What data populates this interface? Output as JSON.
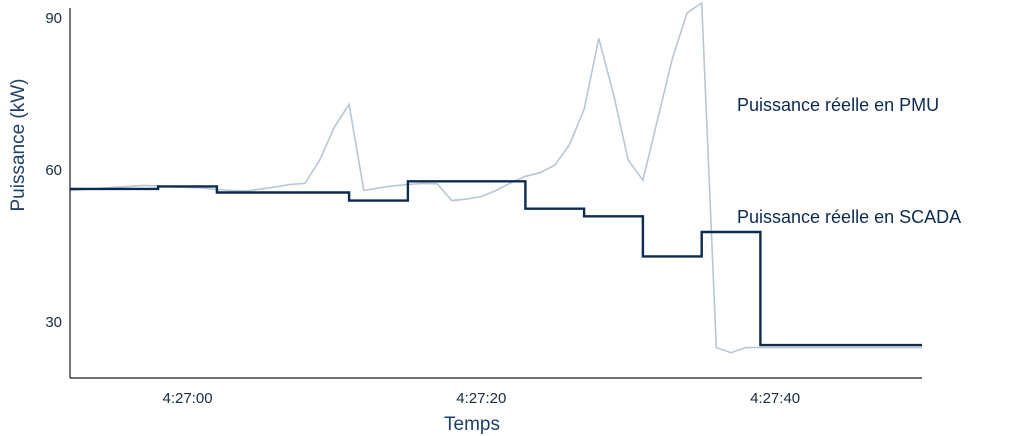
{
  "chart_data": {
    "type": "line",
    "xlabel": "Temps",
    "ylabel": "Puissance (kW)",
    "xlim": [
      -1,
      57
    ],
    "ylim": [
      19,
      92
    ],
    "x_ticks": [
      {
        "value": 7,
        "label": "4:27:00"
      },
      {
        "value": 27,
        "label": "4:27:20"
      },
      {
        "value": 47,
        "label": "4:27:40"
      }
    ],
    "y_ticks": [
      {
        "value": 30,
        "label": "30"
      },
      {
        "value": 60,
        "label": "60"
      },
      {
        "value": 90,
        "label": "90"
      }
    ],
    "grid": false,
    "series": [
      {
        "name": "Puissance réelle en PMU",
        "color": "#b9c6d3",
        "step": false,
        "x": [
          -1,
          0,
          1,
          2,
          3,
          4,
          5,
          6,
          7,
          8,
          9,
          10,
          11,
          12,
          13,
          14,
          15,
          16,
          17,
          18,
          19,
          20,
          21,
          22,
          23,
          24,
          25,
          26,
          27,
          28,
          29,
          30,
          31,
          32,
          33,
          34,
          35,
          36,
          37,
          38,
          39,
          40,
          41,
          42,
          43,
          44,
          45,
          46,
          47,
          48,
          49,
          50,
          51,
          52,
          53,
          54,
          55,
          56,
          57
        ],
        "y": [
          56.0,
          56.2,
          56.4,
          56.6,
          56.8,
          57.0,
          56.9,
          56.7,
          56.6,
          56.5,
          56.2,
          56.0,
          55.9,
          56.3,
          56.7,
          57.2,
          57.4,
          62.0,
          68.5,
          73.0,
          56.0,
          56.5,
          56.9,
          57.2,
          57.4,
          57.3,
          54.0,
          54.3,
          54.8,
          56.0,
          57.5,
          58.8,
          59.5,
          61.0,
          65.0,
          72.0,
          86.0,
          75.0,
          62.0,
          58.0,
          70.0,
          82.0,
          91.0,
          93.0,
          25.0,
          24.0,
          25.0,
          25.0,
          25.0,
          25.0,
          25.0,
          25.0,
          25.0,
          25.0,
          25.0,
          25.0,
          25.0,
          25.0,
          25.0
        ]
      },
      {
        "name": "Puissance réelle en SCADA",
        "color": "#0d2a4f",
        "step": true,
        "x": [
          -1,
          5,
          9,
          13,
          18,
          22,
          26,
          30,
          34,
          38,
          42,
          46,
          50,
          57
        ],
        "y": [
          56.3,
          56.8,
          55.6,
          55.6,
          54.0,
          57.8,
          57.8,
          52.4,
          50.9,
          43.0,
          47.8,
          25.5,
          25.5,
          25.5
        ]
      }
    ],
    "annotations": [
      {
        "text": "Puissance réelle en PMU"
      },
      {
        "text": "Puissance réelle en SCADA"
      }
    ]
  }
}
